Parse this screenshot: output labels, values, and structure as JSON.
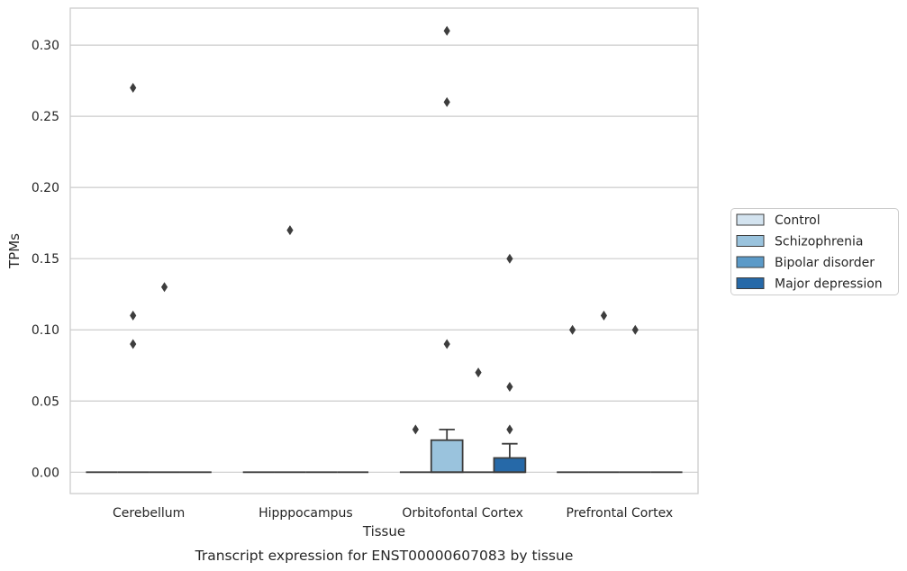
{
  "caption": "Transcript expression for ENST00000607083 by tissue",
  "chart_data": {
    "type": "box",
    "xlabel": "Tissue",
    "ylabel": "TPMs",
    "ylim": [
      -0.015,
      0.326
    ],
    "yticks": [
      "0.00",
      "0.05",
      "0.10",
      "0.15",
      "0.20",
      "0.25",
      "0.30"
    ],
    "ytick_values": [
      0,
      0.05,
      0.1,
      0.15,
      0.2,
      0.25,
      0.3
    ],
    "categories": [
      "Cerebellum",
      "Hipppocampus",
      "Orbitofontal Cortex",
      "Prefrontal Cortex"
    ],
    "grid": "horizontal",
    "legend_placement": "right",
    "series": [
      {
        "name": "Control",
        "color": "#d3e3ef",
        "boxes": [
          {
            "q1": 0,
            "median": 0,
            "q3": 0,
            "whisker_low": 0,
            "whisker_high": 0,
            "outliers": []
          },
          {
            "q1": 0,
            "median": 0,
            "q3": 0,
            "whisker_low": 0,
            "whisker_high": 0,
            "outliers": []
          },
          {
            "q1": 0,
            "median": 0,
            "q3": 0,
            "whisker_low": 0,
            "whisker_high": 0,
            "outliers": [
              0.03
            ]
          },
          {
            "q1": 0,
            "median": 0,
            "q3": 0,
            "whisker_low": 0,
            "whisker_high": 0,
            "outliers": [
              0.1
            ]
          }
        ]
      },
      {
        "name": "Schizophrenia",
        "color": "#9ac3dd",
        "boxes": [
          {
            "q1": 0,
            "median": 0,
            "q3": 0,
            "whisker_low": 0,
            "whisker_high": 0,
            "outliers": [
              0.27,
              0.11,
              0.09
            ]
          },
          {
            "q1": 0,
            "median": 0,
            "q3": 0,
            "whisker_low": 0,
            "whisker_high": 0,
            "outliers": [
              0.17
            ]
          },
          {
            "q1": 0,
            "median": 0,
            "q3": 0.0225,
            "whisker_low": 0,
            "whisker_high": 0.03,
            "outliers": [
              0.31,
              0.26,
              0.09
            ]
          },
          {
            "q1": 0,
            "median": 0,
            "q3": 0,
            "whisker_low": 0,
            "whisker_high": 0,
            "outliers": [
              0.11
            ]
          }
        ]
      },
      {
        "name": "Bipolar disorder",
        "color": "#5b9ac8",
        "boxes": [
          {
            "q1": 0,
            "median": 0,
            "q3": 0,
            "whisker_low": 0,
            "whisker_high": 0,
            "outliers": [
              0.13
            ]
          },
          {
            "q1": 0,
            "median": 0,
            "q3": 0,
            "whisker_low": 0,
            "whisker_high": 0,
            "outliers": []
          },
          {
            "q1": 0,
            "median": 0,
            "q3": 0,
            "whisker_low": 0,
            "whisker_high": 0,
            "outliers": [
              0.07
            ]
          },
          {
            "q1": 0,
            "median": 0,
            "q3": 0,
            "whisker_low": 0,
            "whisker_high": 0,
            "outliers": [
              0.1
            ]
          }
        ]
      },
      {
        "name": "Major depression",
        "color": "#2669a8",
        "boxes": [
          {
            "q1": 0,
            "median": 0,
            "q3": 0,
            "whisker_low": 0,
            "whisker_high": 0,
            "outliers": []
          },
          {
            "q1": 0,
            "median": 0,
            "q3": 0,
            "whisker_low": 0,
            "whisker_high": 0,
            "outliers": []
          },
          {
            "q1": 0,
            "median": 0,
            "q3": 0.01,
            "whisker_low": 0,
            "whisker_high": 0.02,
            "outliers": [
              0.15,
              0.06,
              0.03
            ]
          },
          {
            "q1": 0,
            "median": 0,
            "q3": 0,
            "whisker_low": 0,
            "whisker_high": 0,
            "outliers": []
          }
        ]
      }
    ]
  }
}
